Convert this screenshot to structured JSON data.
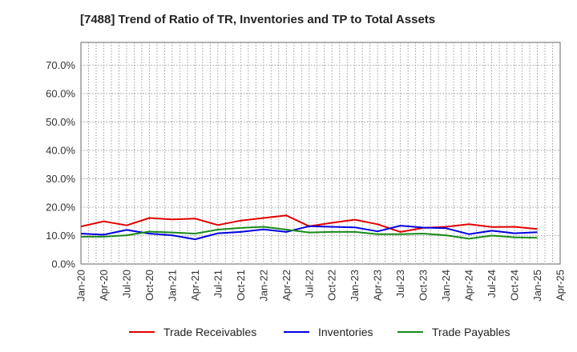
{
  "chart_data": {
    "type": "line",
    "title": "[7488]  Trend of Ratio of TR, Inventories and TP to Total Assets",
    "xlabel": "",
    "ylabel": "",
    "ylim": [
      0,
      0.78
    ],
    "y_ticks": [
      0.0,
      0.1,
      0.2,
      0.3,
      0.4,
      0.5,
      0.6,
      0.7
    ],
    "y_tick_labels": [
      "0.0%",
      "10.0%",
      "20.0%",
      "30.0%",
      "40.0%",
      "50.0%",
      "60.0%",
      "70.0%"
    ],
    "x_tick_labels": [
      "Jan-20",
      "Apr-20",
      "Jul-20",
      "Oct-20",
      "Jan-21",
      "Apr-21",
      "Jul-21",
      "Oct-21",
      "Jan-22",
      "Apr-22",
      "Jul-22",
      "Oct-22",
      "Jan-23",
      "Apr-23",
      "Jul-23",
      "Oct-23",
      "Jan-24",
      "Apr-24",
      "Jul-24",
      "Oct-24",
      "Jan-25",
      "Apr-25"
    ],
    "x": [
      "Jan-20",
      "Apr-20",
      "Jul-20",
      "Oct-20",
      "Jan-21",
      "Apr-21",
      "Jul-21",
      "Oct-21",
      "Jan-22",
      "Apr-22",
      "Jul-22",
      "Oct-22",
      "Jan-23",
      "Apr-23",
      "Jul-23",
      "Oct-23",
      "Jan-24",
      "Apr-24",
      "Jul-24",
      "Oct-24",
      "Jan-25"
    ],
    "grid": true,
    "legend_position": "bottom",
    "series": [
      {
        "name": "Trade Receivables",
        "color": "#e00000",
        "values": [
          0.132,
          0.15,
          0.136,
          0.162,
          0.157,
          0.16,
          0.137,
          0.153,
          0.162,
          0.171,
          0.133,
          0.145,
          0.156,
          0.14,
          0.113,
          0.127,
          0.131,
          0.14,
          0.13,
          0.131,
          0.123
        ]
      },
      {
        "name": "Inventories",
        "color": "#0000e0",
        "values": [
          0.107,
          0.103,
          0.12,
          0.107,
          0.101,
          0.087,
          0.108,
          0.113,
          0.122,
          0.113,
          0.133,
          0.131,
          0.129,
          0.115,
          0.135,
          0.128,
          0.126,
          0.105,
          0.117,
          0.108,
          0.112
        ]
      },
      {
        "name": "Trade Payables",
        "color": "#1a8a1a",
        "values": [
          0.096,
          0.096,
          0.101,
          0.114,
          0.111,
          0.107,
          0.121,
          0.127,
          0.131,
          0.121,
          0.111,
          0.113,
          0.113,
          0.105,
          0.105,
          0.107,
          0.101,
          0.089,
          0.1,
          0.094,
          0.092
        ]
      }
    ]
  }
}
